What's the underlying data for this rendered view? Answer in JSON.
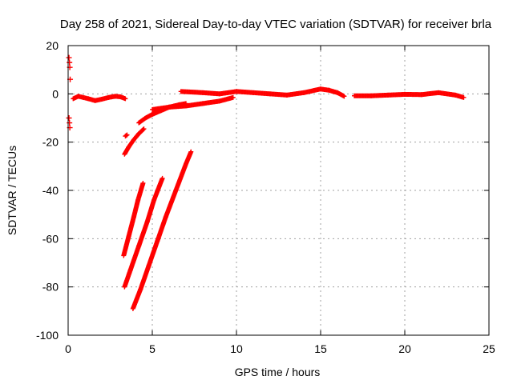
{
  "chart_data": {
    "type": "scatter",
    "title": "Day 258 of 2021, Sidereal Day-to-day VTEC variation (SDTVAR) for receiver brla",
    "xlabel": "GPS time / hours",
    "ylabel": "SDTVAR / TECUs",
    "xlim": [
      0,
      25
    ],
    "ylim": [
      -100,
      20
    ],
    "xticks": [
      0,
      5,
      10,
      15,
      20,
      25
    ],
    "yticks": [
      -100,
      -80,
      -60,
      -40,
      -20,
      0,
      20
    ],
    "grid": true,
    "marker": "+",
    "color": "#ff0000",
    "series": [
      {
        "points": [
          [
            0.05,
            15
          ],
          [
            0.08,
            13
          ],
          [
            0.1,
            11
          ],
          [
            0.12,
            6
          ],
          [
            0.05,
            -10
          ],
          [
            0.08,
            -12
          ],
          [
            0.1,
            -14
          ]
        ]
      },
      {
        "points": [
          [
            0.3,
            -2
          ],
          [
            0.6,
            -1
          ],
          [
            0.9,
            -1.5
          ],
          [
            1.2,
            -2
          ],
          [
            1.6,
            -2.8
          ],
          [
            2.0,
            -2.2
          ],
          [
            2.4,
            -1.5
          ],
          [
            2.8,
            -1
          ],
          [
            3.1,
            -1.2
          ],
          [
            3.4,
            -2
          ]
        ]
      },
      {
        "points": [
          [
            3.4,
            -17.5
          ],
          [
            3.5,
            -17
          ]
        ]
      },
      {
        "points": [
          [
            3.35,
            -25
          ],
          [
            3.6,
            -22
          ],
          [
            3.9,
            -19
          ],
          [
            4.2,
            -16.5
          ],
          [
            4.5,
            -14.5
          ]
        ]
      },
      {
        "points": [
          [
            4.2,
            -12
          ],
          [
            4.6,
            -10
          ],
          [
            5.0,
            -8.5
          ],
          [
            5.5,
            -7
          ],
          [
            6.0,
            -5.5
          ],
          [
            6.6,
            -4.5
          ],
          [
            7.0,
            -4
          ]
        ]
      },
      {
        "points": [
          [
            5.0,
            -6.5
          ],
          [
            6.0,
            -5.5
          ],
          [
            7.0,
            -5
          ],
          [
            8.0,
            -4
          ],
          [
            9.0,
            -3
          ],
          [
            9.8,
            -1.5
          ]
        ]
      },
      {
        "points": [
          [
            6.7,
            1
          ],
          [
            8,
            0.5
          ],
          [
            9,
            0
          ],
          [
            10,
            1
          ],
          [
            11,
            0.5
          ],
          [
            12,
            0
          ],
          [
            13,
            -0.5
          ],
          [
            14,
            0.5
          ],
          [
            15,
            2
          ],
          [
            15.5,
            1.5
          ],
          [
            16,
            0.5
          ],
          [
            16.4,
            -1
          ]
        ]
      },
      {
        "points": [
          [
            17,
            -0.8
          ],
          [
            18,
            -0.8
          ],
          [
            19,
            -0.5
          ],
          [
            20,
            -0.2
          ],
          [
            21,
            -0.3
          ],
          [
            22,
            0.5
          ],
          [
            23,
            -0.5
          ],
          [
            23.5,
            -1.5
          ]
        ]
      },
      {
        "points": [
          [
            3.3,
            -67
          ],
          [
            3.6,
            -59
          ],
          [
            3.9,
            -51
          ],
          [
            4.15,
            -44
          ],
          [
            4.45,
            -37
          ]
        ]
      },
      {
        "points": [
          [
            3.35,
            -80
          ],
          [
            3.7,
            -73
          ],
          [
            4.2,
            -63
          ],
          [
            4.7,
            -53
          ],
          [
            5.1,
            -44
          ],
          [
            5.6,
            -35
          ]
        ]
      },
      {
        "points": [
          [
            3.85,
            -89
          ],
          [
            4.3,
            -81
          ],
          [
            4.8,
            -71
          ],
          [
            5.3,
            -61
          ],
          [
            5.8,
            -51
          ],
          [
            6.4,
            -40
          ],
          [
            7.0,
            -29
          ],
          [
            7.3,
            -24
          ]
        ]
      }
    ]
  }
}
